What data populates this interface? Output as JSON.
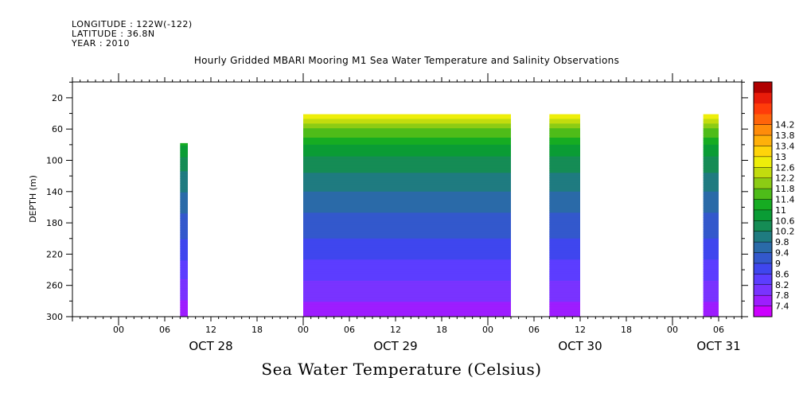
{
  "meta": {
    "longitude": "LONGITUDE : 122W(-122)",
    "latitude": "LATITUDE : 36.8N",
    "year": "YEAR : 2010"
  },
  "title": "Hourly Gridded MBARI Mooring M1 Sea Water Temperature and Salinity Observations",
  "footer": "Sea Water Temperature (Celsius)",
  "chart_data": {
    "type": "heatmap",
    "title": "Hourly Gridded MBARI Mooring M1 Sea Water Temperature and Salinity Observations",
    "xlabel": "",
    "ylabel": "DEPTH (m)",
    "colorbar_label": "Sea Water Temperature (Celsius)",
    "y_ticks": [
      20,
      60,
      100,
      140,
      180,
      220,
      260,
      300
    ],
    "y_range_m": [
      300,
      0
    ],
    "x_range": [
      "2010-10-27 18:00",
      "2010-10-31 09:00"
    ],
    "x_tick_labels": [
      {
        "label": "00",
        "time": "2010-10-28 00:00"
      },
      {
        "label": "06",
        "time": "2010-10-28 06:00"
      },
      {
        "label": "12",
        "time": "2010-10-28 12:00"
      },
      {
        "label": "18",
        "time": "2010-10-28 18:00"
      },
      {
        "label": "00",
        "time": "2010-10-29 00:00"
      },
      {
        "label": "06",
        "time": "2010-10-29 06:00"
      },
      {
        "label": "12",
        "time": "2010-10-29 12:00"
      },
      {
        "label": "18",
        "time": "2010-10-29 18:00"
      },
      {
        "label": "00",
        "time": "2010-10-30 00:00"
      },
      {
        "label": "06",
        "time": "2010-10-30 06:00"
      },
      {
        "label": "12",
        "time": "2010-10-30 12:00"
      },
      {
        "label": "18",
        "time": "2010-10-30 18:00"
      },
      {
        "label": "00",
        "time": "2010-10-31 00:00"
      },
      {
        "label": "06",
        "time": "2010-10-31 06:00"
      }
    ],
    "date_labels": [
      {
        "label": "OCT 28",
        "time": "2010-10-28 12:00"
      },
      {
        "label": "OCT 29",
        "time": "2010-10-29 12:00"
      },
      {
        "label": "OCT 30",
        "time": "2010-10-30 12:00"
      },
      {
        "label": "OCT 31",
        "time": "2010-10-31 06:00"
      }
    ],
    "colorbar_levels": [
      7.4,
      7.8,
      8.2,
      8.6,
      9,
      9.4,
      9.8,
      10.2,
      10.6,
      11,
      11.4,
      11.8,
      12.2,
      12.6,
      13,
      13.4,
      13.8,
      14.2
    ],
    "colorbar_colors": [
      "#cc00ff",
      "#9d1dff",
      "#7933ff",
      "#5c3dff",
      "#3f46ee",
      "#3358cc",
      "#2a6aa8",
      "#1f7b80",
      "#158c55",
      "#0a9c35",
      "#16ac22",
      "#4ebc19",
      "#8ccc14",
      "#c2dc0e",
      "#eeee0a",
      "#ffd40a",
      "#ffb00a",
      "#ff8c0a",
      "#ff640a",
      "#ff3c0a",
      "#e81c0a",
      "#b00000"
    ],
    "data_segments": [
      {
        "start": "2010-10-28 08:00",
        "end": "2010-10-28 09:00",
        "depth_top": 78,
        "depth_bottom": 300
      },
      {
        "start": "2010-10-29 00:00",
        "end": "2010-10-30 03:00",
        "depth_top": 41,
        "depth_bottom": 300
      },
      {
        "start": "2010-10-30 08:00",
        "end": "2010-10-30 12:00",
        "depth_top": 41,
        "depth_bottom": 300
      },
      {
        "start": "2010-10-31 04:00",
        "end": "2010-10-31 06:00",
        "depth_top": 41,
        "depth_bottom": 300
      }
    ],
    "temperature_profile": [
      {
        "depth": 41,
        "temp": 13.0
      },
      {
        "depth": 50,
        "temp": 12.3
      },
      {
        "depth": 60,
        "temp": 11.8
      },
      {
        "depth": 80,
        "temp": 11.0
      },
      {
        "depth": 100,
        "temp": 10.5
      },
      {
        "depth": 120,
        "temp": 10.1
      },
      {
        "depth": 140,
        "temp": 9.8
      },
      {
        "depth": 160,
        "temp": 9.5
      },
      {
        "depth": 180,
        "temp": 9.2
      },
      {
        "depth": 200,
        "temp": 9.0
      },
      {
        "depth": 220,
        "temp": 8.7
      },
      {
        "depth": 240,
        "temp": 8.4
      },
      {
        "depth": 260,
        "temp": 8.1
      },
      {
        "depth": 280,
        "temp": 7.8
      },
      {
        "depth": 300,
        "temp": 7.5
      }
    ]
  }
}
